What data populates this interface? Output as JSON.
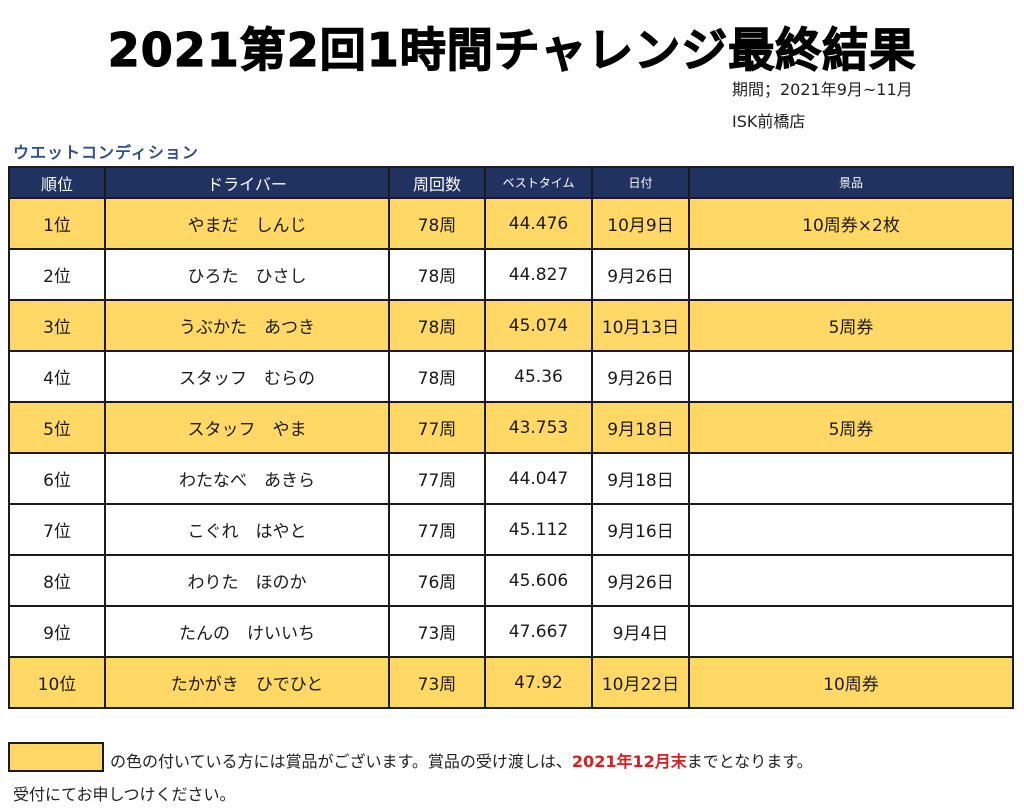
{
  "title": "2021第2回1時間チャレンジ最終結果",
  "period": "期間；2021年9月~11月",
  "store": "ISK前橋店",
  "condition": "ウエットコンディション",
  "colors": {
    "header_bg": "#1f3260",
    "highlight": "#ffd866",
    "deadline": "#d42020",
    "condition": "#2f4f86"
  },
  "table": {
    "headers": [
      "順位",
      "ドライバー",
      "周回数",
      "ベストタイム",
      "日付",
      "景品"
    ],
    "rows": [
      {
        "rank": "1位",
        "driver": "やまだ　しんじ",
        "laps": "78周",
        "best": "44.476",
        "date": "10月9日",
        "prize": "10周券×2枚",
        "highlight": true
      },
      {
        "rank": "2位",
        "driver": "ひろた　ひさし",
        "laps": "78周",
        "best": "44.827",
        "date": "9月26日",
        "prize": "",
        "highlight": false
      },
      {
        "rank": "3位",
        "driver": "うぶかた　あつき",
        "laps": "78周",
        "best": "45.074",
        "date": "10月13日",
        "prize": "5周券",
        "highlight": true
      },
      {
        "rank": "4位",
        "driver": "スタッフ　むらの",
        "laps": "78周",
        "best": "45.36",
        "date": "9月26日",
        "prize": "",
        "highlight": false
      },
      {
        "rank": "5位",
        "driver": "スタッフ　やま",
        "laps": "77周",
        "best": "43.753",
        "date": "9月18日",
        "prize": "5周券",
        "highlight": true
      },
      {
        "rank": "6位",
        "driver": "わたなべ　あきら",
        "laps": "77周",
        "best": "44.047",
        "date": "9月18日",
        "prize": "",
        "highlight": false
      },
      {
        "rank": "7位",
        "driver": "こぐれ　はやと",
        "laps": "77周",
        "best": "45.112",
        "date": "9月16日",
        "prize": "",
        "highlight": false
      },
      {
        "rank": "8位",
        "driver": "わりた　ほのか",
        "laps": "76周",
        "best": "45.606",
        "date": "9月26日",
        "prize": "",
        "highlight": false
      },
      {
        "rank": "9位",
        "driver": "たんの　けいいち",
        "laps": "73周",
        "best": "47.667",
        "date": "9月4日",
        "prize": "",
        "highlight": false
      },
      {
        "rank": "10位",
        "driver": "たかがき　ひでひと",
        "laps": "73周",
        "best": "47.92",
        "date": "10月22日",
        "prize": "10周券",
        "highlight": true
      }
    ]
  },
  "note": {
    "line1_before": "の色の付いている方には賞品がございます。賞品の受け渡しは、",
    "deadline": "2021年12月末",
    "line1_after": "までとなります。",
    "line2": "受付にてお申しつけください。"
  }
}
